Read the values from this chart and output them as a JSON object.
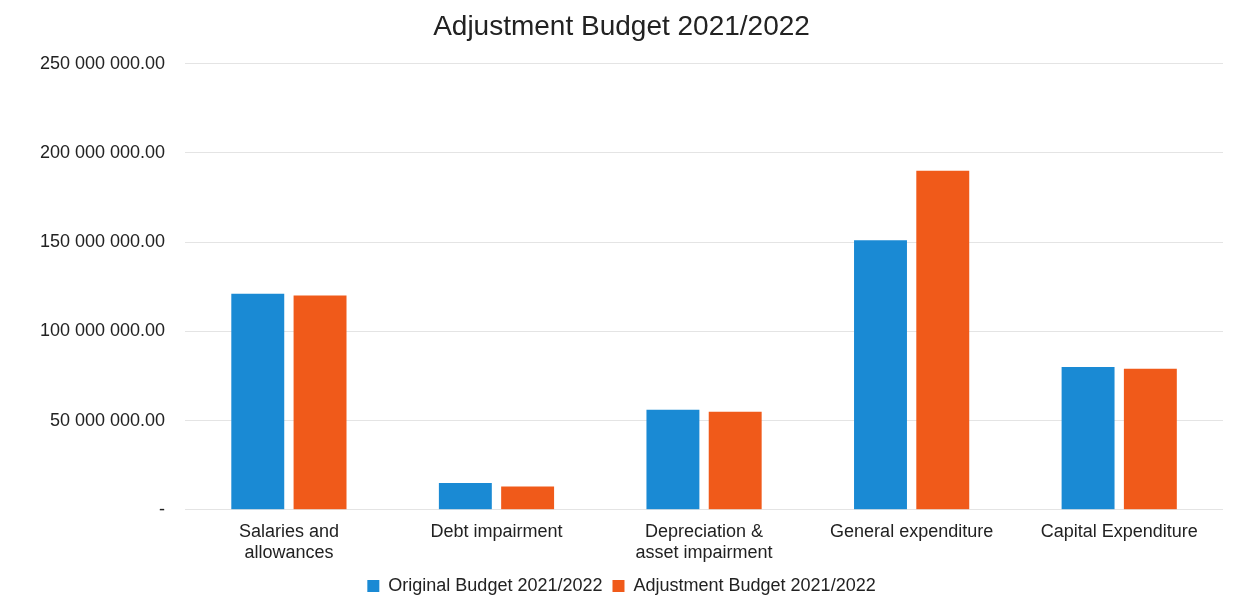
{
  "chart_data": {
    "type": "bar",
    "title": "Adjustment Budget 2021/2022",
    "categories": [
      "Salaries and allowances",
      "Debt impairment",
      "Depreciation & asset impairment",
      "General expenditure",
      "Capital Expenditure"
    ],
    "series": [
      {
        "name": "Original Budget 2021/2022",
        "color": "#1a8ad4",
        "values": [
          121000000,
          15000000,
          56000000,
          151000000,
          80000000
        ]
      },
      {
        "name": "Adjustment Budget 2021/2022",
        "color": "#f05a1a",
        "values": [
          120000000,
          13000000,
          55000000,
          190000000,
          79000000
        ]
      }
    ],
    "ylim": [
      0,
      250000000
    ],
    "yticks": [
      {
        "value": 0,
        "label": "-"
      },
      {
        "value": 50000000,
        "label": "50 000 000.00"
      },
      {
        "value": 100000000,
        "label": "100 000 000.00"
      },
      {
        "value": 150000000,
        "label": "150 000 000.00"
      },
      {
        "value": 200000000,
        "label": "200 000 000.00"
      },
      {
        "value": 250000000,
        "label": "250 000 000.00"
      }
    ],
    "grid": "y",
    "legend": "bottom"
  }
}
